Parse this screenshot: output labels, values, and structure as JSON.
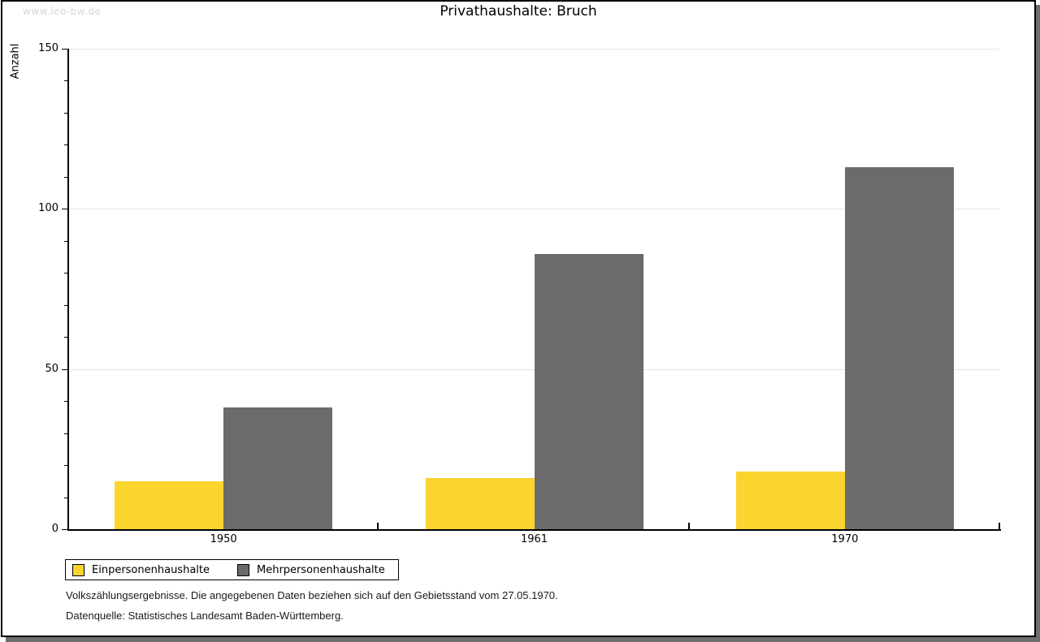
{
  "watermark": "www.leo-bw.de",
  "title": "Privathaushalte:  Bruch",
  "chart_data": {
    "type": "bar",
    "title": "Privathaushalte: Bruch",
    "categories": [
      "1950",
      "1961",
      "1970"
    ],
    "series": [
      {
        "name": "Einpersonenhaushalte",
        "color": "#fbd42d",
        "values": [
          15,
          16,
          18
        ]
      },
      {
        "name": "Mehrpersonenhaushalte",
        "color": "#6b6b6b",
        "values": [
          38,
          86,
          113
        ]
      }
    ],
    "xlabel": "",
    "ylabel": "Anzahl",
    "ylim": [
      0,
      150
    ],
    "yticks": [
      0,
      50,
      100,
      150
    ],
    "minor_tick_step": 10,
    "grid": true,
    "legend_position": "bottom-left"
  },
  "legend": {
    "items": [
      {
        "label": "Einpersonenhaushalte",
        "color": "#fbd42d"
      },
      {
        "label": "Mehrpersonenhaushalte",
        "color": "#6b6b6b"
      }
    ]
  },
  "footnotes": {
    "line1": "Volkszählungsergebnisse. Die angegebenen Daten beziehen sich auf den Gebietsstand vom 27.05.1970.",
    "line2": "Datenquelle: Statistisches Landesamt Baden-Württemberg."
  }
}
